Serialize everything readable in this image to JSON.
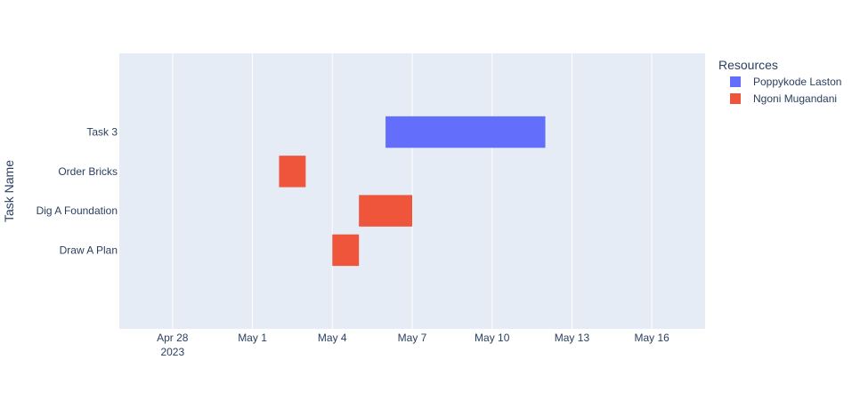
{
  "chart_data": {
    "type": "gantt",
    "title": "",
    "xlabel": "",
    "ylabel": "Task Name",
    "x_tick_labels": [
      {
        "date": "2023-04-28",
        "label": "Apr 28",
        "sublabel": "2023"
      },
      {
        "date": "2023-05-01",
        "label": "May 1",
        "sublabel": ""
      },
      {
        "date": "2023-05-04",
        "label": "May 4",
        "sublabel": ""
      },
      {
        "date": "2023-05-07",
        "label": "May 7",
        "sublabel": ""
      },
      {
        "date": "2023-05-10",
        "label": "May 10",
        "sublabel": ""
      },
      {
        "date": "2023-05-13",
        "label": "May 13",
        "sublabel": ""
      },
      {
        "date": "2023-05-16",
        "label": "May 16",
        "sublabel": ""
      }
    ],
    "xlim": [
      "2023-04-26",
      "2023-05-18"
    ],
    "categories": [
      "Draw A Plan",
      "Dig A Foundation",
      "Order Bricks",
      "Task 3"
    ],
    "tasks": [
      {
        "task": "Draw A Plan",
        "start": "2023-05-04",
        "finish": "2023-05-05",
        "resource": "Ngoni Mugandani"
      },
      {
        "task": "Dig A Foundation",
        "start": "2023-05-05",
        "finish": "2023-05-07",
        "resource": "Ngoni Mugandani"
      },
      {
        "task": "Order Bricks",
        "start": "2023-05-02",
        "finish": "2023-05-03",
        "resource": "Ngoni Mugandani"
      },
      {
        "task": "Task 3",
        "start": "2023-05-06",
        "finish": "2023-05-12",
        "resource": "Poppykode Laston"
      }
    ],
    "legend": {
      "title": "Resources",
      "placement": "top-right",
      "entries": [
        {
          "name": "Poppykode Laston",
          "color": "#636efa"
        },
        {
          "name": "Ngoni Mugandani",
          "color": "#EF553B"
        }
      ]
    },
    "grid": true,
    "plot_background": "#E5ECF6",
    "grid_color": "#ffffff"
  }
}
